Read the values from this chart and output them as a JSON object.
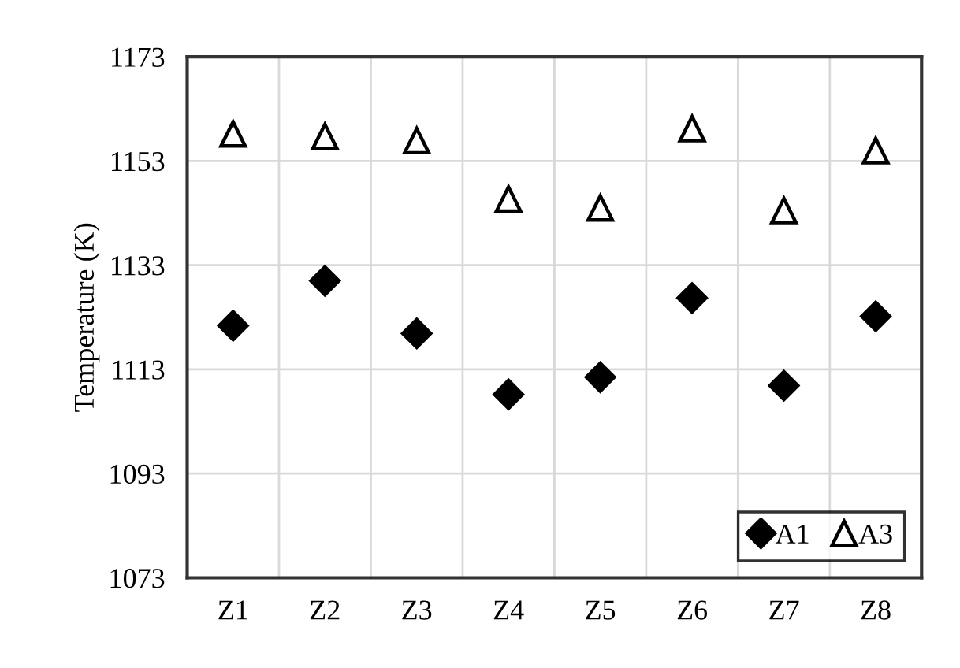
{
  "chart_data": {
    "type": "scatter",
    "ylabel": "Temperature (K)",
    "categories": [
      "Z1",
      "Z2",
      "Z3",
      "Z4",
      "Z5",
      "Z6",
      "Z7",
      "Z8"
    ],
    "series": [
      {
        "name": "A1",
        "color": "#000000",
        "marker": "diamond",
        "values": [
          1121.4,
          1130,
          1119.9,
          1108.2,
          1111.5,
          1126.7,
          1109.9,
          1123.2
        ]
      },
      {
        "name": "A3",
        "color": "#000000",
        "marker": "triangle",
        "values": [
          1158.2,
          1157.7,
          1156.9,
          1145.7,
          1144,
          1159.2,
          1143.5,
          1155
        ]
      }
    ],
    "ylim": [
      1073,
      1173
    ],
    "yticks": [
      1073,
      1093,
      1113,
      1133,
      1153,
      1173
    ],
    "grid": true,
    "legend": "bottom right"
  }
}
